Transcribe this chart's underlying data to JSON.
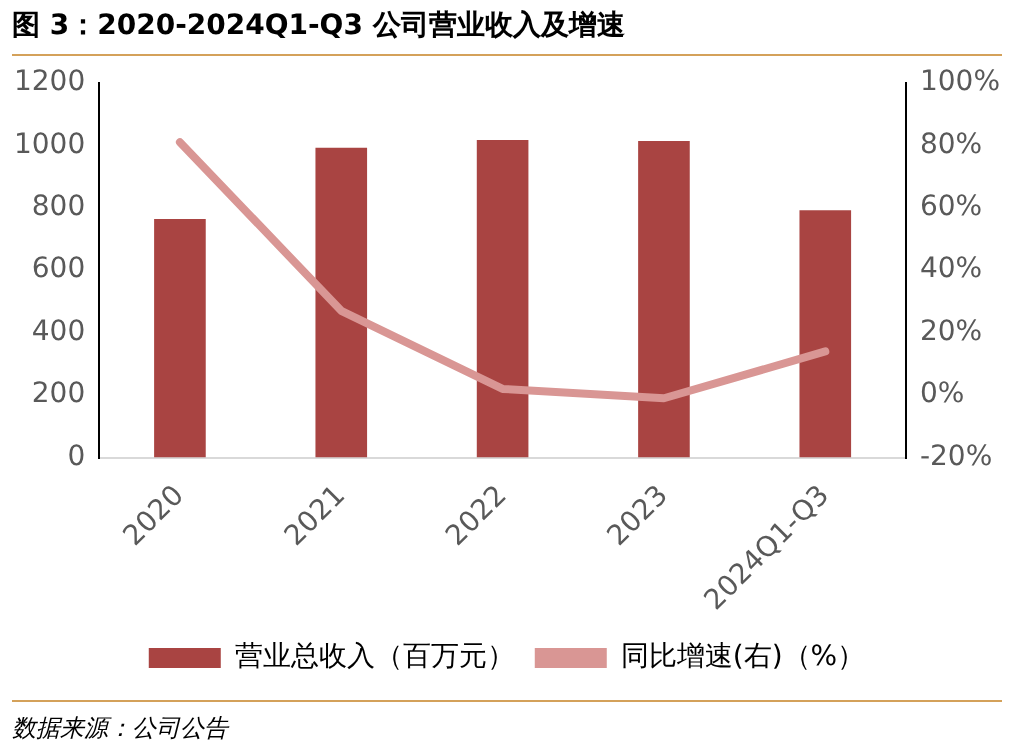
{
  "chart_data": {
    "type": "bar",
    "title": "图 3：2020-2024Q1-Q3 公司营业收入及增速",
    "categories": [
      "2020",
      "2021",
      "2022",
      "2023",
      "2024Q1-Q3"
    ],
    "series": [
      {
        "name": "营业总收入（百万元）",
        "color": "#a94442",
        "values": [
          764,
          992,
          1017,
          1014,
          792
        ]
      },
      {
        "name": "同比增速(右)（%）",
        "type": "line",
        "axis": "y2",
        "color": "#d99694",
        "values": [
          81,
          27,
          2,
          -1,
          14
        ]
      }
    ],
    "ylim": [
      0,
      1200
    ],
    "yticks": [
      0,
      200,
      400,
      600,
      800,
      1000,
      1200
    ],
    "y2lim": [
      -20,
      100
    ],
    "y2ticks": [
      {
        "value": -20,
        "label": "-20%"
      },
      {
        "value": 0,
        "label": "0%"
      },
      {
        "value": 20,
        "label": "20%"
      },
      {
        "value": 40,
        "label": "40%"
      },
      {
        "value": 60,
        "label": "60%"
      },
      {
        "value": 80,
        "label": "80%"
      },
      {
        "value": 100,
        "label": "100%"
      }
    ],
    "grid": false,
    "legend": "bottom",
    "marker": "none",
    "annotations": [
      "数据来源：公司公告"
    ]
  }
}
